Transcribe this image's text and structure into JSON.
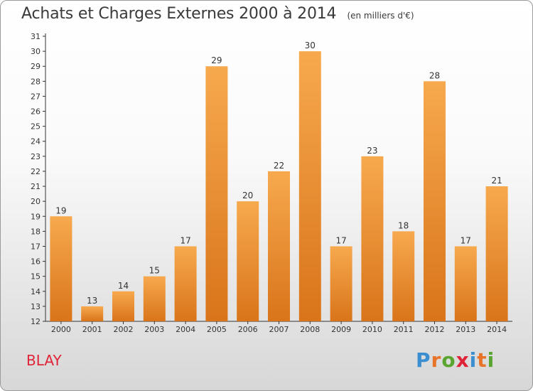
{
  "header": {
    "title": "Achats et Charges Externes 2000 à 2014",
    "unit": "(en milliers d'€)"
  },
  "footer": {
    "commune": "BLAY",
    "logo_text": "Proxiti"
  },
  "colors": {
    "bar_top": "#f7a94e",
    "bar_bottom": "#d9741a",
    "commune": "#e02438",
    "logo": [
      "#3b8fd1",
      "#e8742a",
      "#5aa52f",
      "#e02438",
      "#3b8fd1",
      "#e8742a",
      "#5aa52f"
    ]
  },
  "chart_data": {
    "type": "bar",
    "categories": [
      "2000",
      "2001",
      "2002",
      "2003",
      "2004",
      "2005",
      "2006",
      "2007",
      "2008",
      "2009",
      "2010",
      "2011",
      "2012",
      "2013",
      "2014"
    ],
    "values": [
      19,
      13,
      14,
      15,
      17,
      29,
      20,
      22,
      30,
      17,
      23,
      18,
      28,
      17,
      21
    ],
    "ylim": [
      12,
      31
    ],
    "yticks": [
      12,
      13,
      14,
      15,
      16,
      17,
      18,
      19,
      20,
      21,
      22,
      23,
      24,
      25,
      26,
      27,
      28,
      29,
      30,
      31
    ],
    "grid": false,
    "data_labels": true
  }
}
